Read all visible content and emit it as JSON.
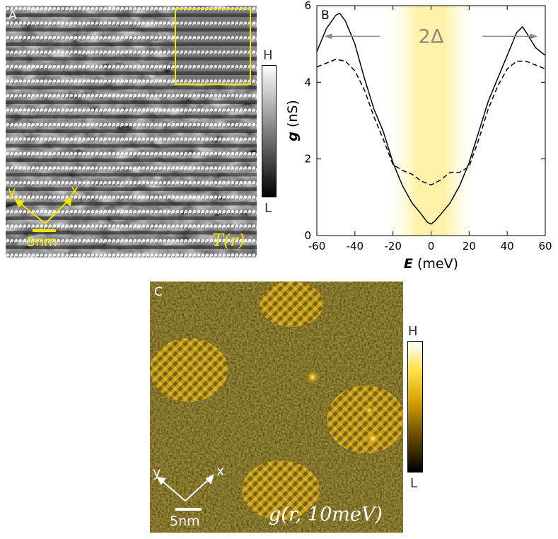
{
  "panelA": {
    "label": "A",
    "map_label": "T(r)",
    "scalebar": "5nm",
    "axis_x": "x",
    "axis_y": "y",
    "colorbar": {
      "high": "H",
      "low": "L"
    }
  },
  "panelB": {
    "label": "B",
    "gap_label": "2Δ",
    "colors": {
      "gap_band": "#fff2a8",
      "arrow": "#888888"
    }
  },
  "panelC": {
    "label": "C",
    "map_label": "g(r, 10meV)",
    "scalebar": "5nm",
    "axis_x": "x",
    "axis_y": "y",
    "colorbar": {
      "high": "H",
      "low": "L"
    }
  },
  "colors": {
    "annotation_yellow": "#f5e400",
    "gold": "#d9a400"
  },
  "chart_data": {
    "type": "line",
    "xlabel": "E (meV)",
    "ylabel": "g (nS)",
    "xlim": [
      -60,
      60
    ],
    "ylim": [
      0,
      6
    ],
    "xticks": [
      -60,
      -40,
      -20,
      0,
      20,
      40,
      60
    ],
    "yticks": [
      0,
      2,
      4,
      6
    ],
    "gap_band": [
      -20,
      20
    ],
    "series": [
      {
        "style": "solid",
        "x": [
          -60,
          -55,
          -50,
          -48,
          -45,
          -40,
          -35,
          -30,
          -25,
          -20,
          -15,
          -10,
          -5,
          -2,
          0,
          2,
          5,
          10,
          15,
          20,
          25,
          30,
          35,
          40,
          45,
          48,
          50,
          55,
          60
        ],
        "y": [
          4.8,
          5.4,
          5.75,
          5.8,
          5.6,
          5.0,
          4.1,
          3.3,
          2.7,
          1.9,
          1.3,
          0.85,
          0.55,
          0.35,
          0.3,
          0.38,
          0.55,
          0.85,
          1.3,
          1.9,
          2.7,
          3.5,
          4.1,
          4.7,
          5.3,
          5.45,
          5.3,
          4.9,
          4.7
        ]
      },
      {
        "style": "dashed",
        "x": [
          -60,
          -55,
          -50,
          -45,
          -40,
          -35,
          -30,
          -25,
          -20,
          -15,
          -10,
          -5,
          0,
          5,
          10,
          15,
          20,
          25,
          30,
          35,
          40,
          45,
          50,
          55,
          60
        ],
        "y": [
          4.4,
          4.5,
          4.6,
          4.55,
          4.3,
          3.8,
          3.1,
          2.5,
          1.85,
          1.7,
          1.6,
          1.42,
          1.32,
          1.45,
          1.65,
          1.65,
          1.8,
          2.5,
          3.3,
          3.9,
          4.35,
          4.55,
          4.55,
          4.45,
          4.35
        ]
      }
    ]
  }
}
